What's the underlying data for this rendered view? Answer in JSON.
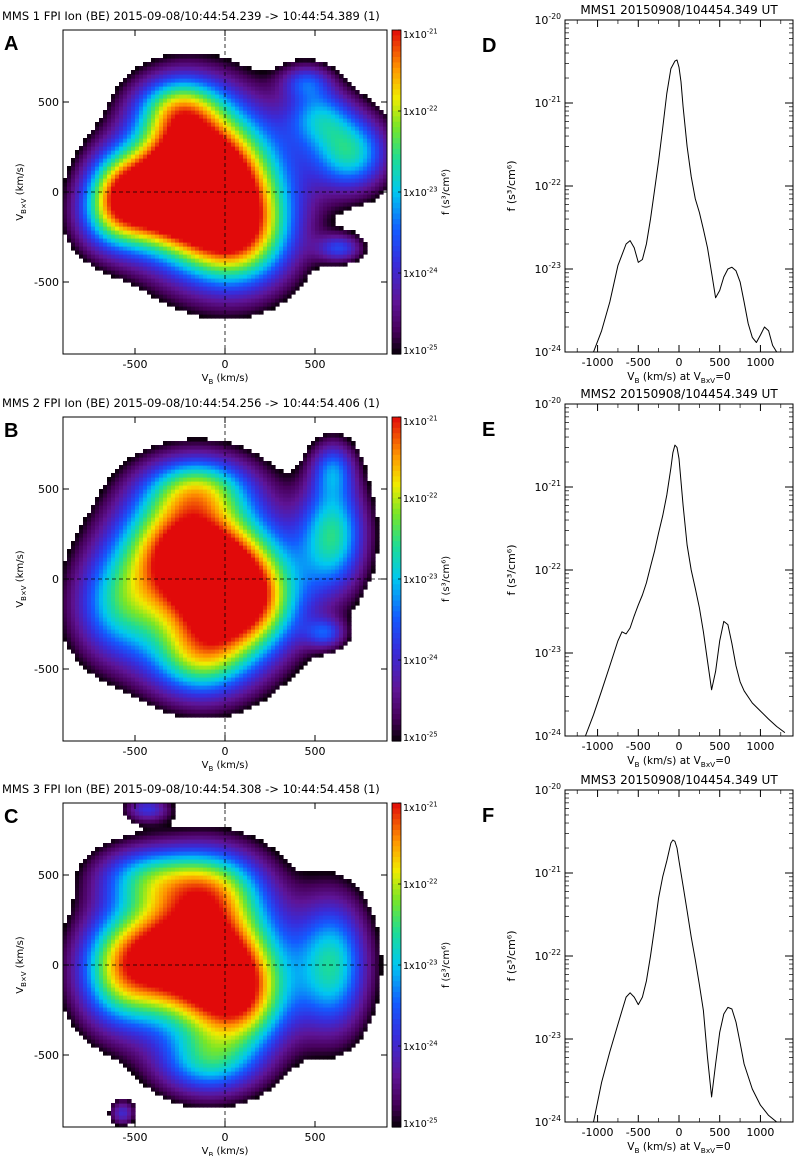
{
  "chart_data": [
    {
      "type": "heatmap",
      "panel_label": "A",
      "title": "MMS 1 FPI Ion (BE) 2015-09-08/10:44:54.239 -> 10:44:54.389 (1)",
      "xlabel": "V",
      "xlabel_sub": "B",
      "xlabel_unit": "(km/s)",
      "ylabel": "V",
      "ylabel_sub": "B×V",
      "ylabel_unit": "(km/s)",
      "xlim": [
        -900,
        900
      ],
      "ylim": [
        -900,
        900
      ],
      "xticks": [
        -500,
        0,
        500
      ],
      "xtick_labels": [
        "-500",
        "0",
        "500"
      ],
      "yticks": [
        -500,
        0,
        500
      ],
      "ytick_labels": [
        "-500",
        "0",
        "500"
      ],
      "colorbar": {
        "label": "f (s³/cm⁶)",
        "range": [
          1e-25,
          1e-21
        ],
        "tick_labels": [
          {
            "value": 1e-21,
            "mant": "1x10",
            "exp": "-21"
          },
          {
            "value": 1e-22,
            "mant": "1x10",
            "exp": "-22"
          },
          {
            "value": 1e-23,
            "mant": "1x10",
            "exp": "-23"
          },
          {
            "value": 1e-24,
            "mant": "1x10",
            "exp": "-24"
          },
          {
            "value": 1e-25,
            "mant": "1x10",
            "exp": "-25"
          }
        ]
      },
      "peak": {
        "x": -50,
        "y": 0,
        "log10f": -21.3
      },
      "blobs": [
        {
          "x": -60,
          "y": 20,
          "sx": 280,
          "sy": 300,
          "amp": 1.0
        },
        {
          "x": -220,
          "y": 130,
          "sx": 220,
          "sy": 270,
          "amp": 0.6
        },
        {
          "x": 80,
          "y": -250,
          "sx": 200,
          "sy": 200,
          "amp": 0.5
        },
        {
          "x": -380,
          "y": -40,
          "sx": 170,
          "sy": 170,
          "amp": 0.42
        },
        {
          "x": -620,
          "y": -130,
          "sx": 150,
          "sy": 150,
          "amp": 0.48
        },
        {
          "x": -600,
          "y": 60,
          "sx": 130,
          "sy": 140,
          "amp": 0.35
        },
        {
          "x": 700,
          "y": 220,
          "sx": 150,
          "sy": 150,
          "amp": 0.55
        },
        {
          "x": 520,
          "y": 430,
          "sx": 130,
          "sy": 120,
          "amp": 0.38
        },
        {
          "x": 450,
          "y": 620,
          "sx": 100,
          "sy": 70,
          "amp": 0.28
        },
        {
          "x": 640,
          "y": -310,
          "sx": 90,
          "sy": 55,
          "amp": 0.32
        },
        {
          "x": -260,
          "y": 480,
          "sx": 160,
          "sy": 120,
          "amp": 0.4
        }
      ]
    },
    {
      "type": "heatmap",
      "panel_label": "B",
      "title": "MMS 2 FPI Ion (BE) 2015-09-08/10:44:54.256 -> 10:44:54.406 (1)",
      "xlabel": "V",
      "xlabel_sub": "B",
      "xlabel_unit": "(km/s)",
      "ylabel": "V",
      "ylabel_sub": "B×V",
      "ylabel_unit": "(km/s)",
      "xlim": [
        -900,
        900
      ],
      "ylim": [
        -900,
        900
      ],
      "xticks": [
        -500,
        0,
        500
      ],
      "xtick_labels": [
        "-500",
        "0",
        "500"
      ],
      "yticks": [
        -500,
        0,
        500
      ],
      "ytick_labels": [
        "-500",
        "0",
        "500"
      ],
      "colorbar": {
        "label": "f (s³/cm⁶)",
        "range": [
          1e-25,
          1e-21
        ],
        "tick_labels": [
          {
            "value": 1e-21,
            "mant": "1x10",
            "exp": "-21"
          },
          {
            "value": 1e-22,
            "mant": "1x10",
            "exp": "-22"
          },
          {
            "value": 1e-23,
            "mant": "1x10",
            "exp": "-23"
          },
          {
            "value": 1e-24,
            "mant": "1x10",
            "exp": "-24"
          },
          {
            "value": 1e-25,
            "mant": "1x10",
            "exp": "-25"
          }
        ]
      },
      "peak": {
        "x": -50,
        "y": -60,
        "log10f": -21.3
      },
      "blobs": [
        {
          "x": -60,
          "y": 0,
          "sx": 260,
          "sy": 300,
          "amp": 1.0
        },
        {
          "x": -300,
          "y": 200,
          "sx": 230,
          "sy": 230,
          "amp": 0.55
        },
        {
          "x": 150,
          "y": -120,
          "sx": 200,
          "sy": 200,
          "amp": 0.5
        },
        {
          "x": -600,
          "y": -150,
          "sx": 180,
          "sy": 220,
          "amp": 0.45
        },
        {
          "x": -150,
          "y": -450,
          "sx": 200,
          "sy": 160,
          "amp": 0.45
        },
        {
          "x": 600,
          "y": 250,
          "sx": 130,
          "sy": 220,
          "amp": 0.58
        },
        {
          "x": 600,
          "y": 620,
          "sx": 85,
          "sy": 110,
          "amp": 0.32
        },
        {
          "x": 560,
          "y": -300,
          "sx": 80,
          "sy": 60,
          "amp": 0.3
        },
        {
          "x": -150,
          "y": 520,
          "sx": 200,
          "sy": 120,
          "amp": 0.42
        }
      ]
    },
    {
      "type": "heatmap",
      "panel_label": "C",
      "title": "MMS 3 FPI Ion (BE) 2015-09-08/10:44:54.308 -> 10:44:54.458 (1)",
      "xlabel": "V",
      "xlabel_sub": "B",
      "xlabel_unit": "(km/s)",
      "ylabel": "V",
      "ylabel_sub": "B×V",
      "ylabel_unit": "(km/s)",
      "xlim": [
        -900,
        900
      ],
      "ylim": [
        -900,
        900
      ],
      "xticks": [
        -500,
        0,
        500
      ],
      "xtick_labels": [
        "-500",
        "0",
        "500"
      ],
      "yticks": [
        -500,
        0,
        500
      ],
      "ytick_labels": [
        "-500",
        "0",
        "500"
      ],
      "colorbar": {
        "label": "f (s³/cm⁶)",
        "range": [
          1e-25,
          1e-21
        ],
        "tick_labels": [
          {
            "value": 1e-21,
            "mant": "1x10",
            "exp": "-21"
          },
          {
            "value": 1e-22,
            "mant": "1x10",
            "exp": "-22"
          },
          {
            "value": 1e-23,
            "mant": "1x10",
            "exp": "-23"
          },
          {
            "value": 1e-24,
            "mant": "1x10",
            "exp": "-24"
          },
          {
            "value": 1e-25,
            "mant": "1x10",
            "exp": "-25"
          }
        ]
      },
      "peak": {
        "x": -70,
        "y": 20,
        "log10f": -21.3
      },
      "blobs": [
        {
          "x": -60,
          "y": 20,
          "sx": 260,
          "sy": 290,
          "amp": 1.0
        },
        {
          "x": -380,
          "y": 80,
          "sx": 220,
          "sy": 230,
          "amp": 0.55
        },
        {
          "x": -600,
          "y": -50,
          "sx": 170,
          "sy": 220,
          "amp": 0.48
        },
        {
          "x": 100,
          "y": -200,
          "sx": 180,
          "sy": 200,
          "amp": 0.45
        },
        {
          "x": -100,
          "y": -550,
          "sx": 200,
          "sy": 130,
          "amp": 0.4
        },
        {
          "x": 600,
          "y": 0,
          "sx": 140,
          "sy": 260,
          "amp": 0.55
        },
        {
          "x": -450,
          "y": 500,
          "sx": 200,
          "sy": 120,
          "amp": 0.38
        },
        {
          "x": -430,
          "y": 870,
          "sx": 90,
          "sy": 50,
          "amp": 0.3
        },
        {
          "x": -570,
          "y": -820,
          "sx": 50,
          "sy": 50,
          "amp": 0.28
        },
        {
          "x": -80,
          "y": 450,
          "sx": 200,
          "sy": 150,
          "amp": 0.45
        }
      ]
    },
    {
      "type": "line",
      "panel_label": "D",
      "title": "MMS1 20150908/104454.349 UT",
      "xlabel": "V",
      "xlabel_sub": "B",
      "xlabel_mid": "(km/s) at V",
      "xlabel_sub2": "BxV",
      "xlabel_end": "=0",
      "ylabel": "f (s³/cm⁶)",
      "xlim": [
        -1400,
        1400
      ],
      "ylim": [
        1e-24,
        1e-20
      ],
      "yscale": "log",
      "xticks": [
        -1000,
        -500,
        0,
        500,
        1000
      ],
      "xtick_labels": [
        "-1000",
        "-500",
        "0",
        "500",
        "1000"
      ],
      "ytick_labels": [
        {
          "value": 1e-20,
          "mant": "10",
          "exp": "-20"
        },
        {
          "value": 1e-21,
          "mant": "10",
          "exp": "-21"
        },
        {
          "value": 1e-22,
          "mant": "10",
          "exp": "-22"
        },
        {
          "value": 1e-23,
          "mant": "10",
          "exp": "-23"
        },
        {
          "value": 1e-24,
          "mant": "10",
          "exp": "-24"
        }
      ],
      "x": [
        -1050,
        -950,
        -850,
        -750,
        -650,
        -600,
        -550,
        -500,
        -450,
        -400,
        -350,
        -300,
        -250,
        -200,
        -150,
        -100,
        -50,
        -25,
        0,
        25,
        50,
        100,
        150,
        200,
        250,
        300,
        350,
        400,
        450,
        500,
        550,
        600,
        650,
        700,
        750,
        800,
        850,
        900,
        950,
        1000,
        1050,
        1100,
        1150,
        1200
      ],
      "y": [
        1e-24,
        1.8e-24,
        4e-24,
        1.1e-23,
        2e-23,
        2.2e-23,
        1.8e-23,
        1.2e-23,
        1.3e-23,
        2e-23,
        4e-23,
        9e-23,
        2e-22,
        5e-22,
        1.3e-21,
        2.6e-21,
        3.2e-21,
        3.3e-21,
        2.7e-21,
        1.8e-21,
        9e-22,
        3e-22,
        1.3e-22,
        7e-23,
        4.8e-23,
        3e-23,
        1.8e-23,
        9e-24,
        4.5e-24,
        5.5e-24,
        8e-24,
        1e-23,
        1.05e-23,
        9.5e-24,
        7e-24,
        4e-24,
        2.2e-24,
        1.5e-24,
        1.3e-24,
        1.6e-24,
        2e-24,
        1.8e-24,
        1.2e-24,
        1e-24
      ]
    },
    {
      "type": "line",
      "panel_label": "E",
      "title": "MMS2 20150908/104454.349 UT",
      "xlabel": "V",
      "xlabel_sub": "B",
      "xlabel_mid": "(km/s) at V",
      "xlabel_sub2": "BxV",
      "xlabel_end": "=0",
      "ylabel": "f (s³/cm⁶)",
      "xlim": [
        -1400,
        1400
      ],
      "ylim": [
        1e-24,
        1e-20
      ],
      "yscale": "log",
      "xticks": [
        -1000,
        -500,
        0,
        500,
        1000
      ],
      "xtick_labels": [
        "-1000",
        "-500",
        "0",
        "500",
        "1000"
      ],
      "ytick_labels": [
        {
          "value": 1e-20,
          "mant": "10",
          "exp": "-20"
        },
        {
          "value": 1e-21,
          "mant": "10",
          "exp": "-21"
        },
        {
          "value": 1e-22,
          "mant": "10",
          "exp": "-22"
        },
        {
          "value": 1e-23,
          "mant": "10",
          "exp": "-23"
        },
        {
          "value": 1e-24,
          "mant": "10",
          "exp": "-24"
        }
      ],
      "x": [
        -1150,
        -1050,
        -950,
        -850,
        -750,
        -700,
        -650,
        -600,
        -550,
        -500,
        -450,
        -400,
        -350,
        -300,
        -250,
        -200,
        -150,
        -100,
        -75,
        -50,
        -25,
        0,
        50,
        100,
        150,
        200,
        250,
        300,
        350,
        400,
        450,
        500,
        550,
        600,
        650,
        700,
        750,
        800,
        900,
        1000,
        1100,
        1200,
        1300
      ],
      "y": [
        1e-24,
        1.8e-24,
        3.5e-24,
        7e-24,
        1.4e-23,
        1.8e-23,
        1.7e-23,
        2e-23,
        2.8e-23,
        3.8e-23,
        5e-23,
        7e-23,
        1.1e-22,
        1.7e-22,
        2.8e-22,
        4.5e-22,
        8e-22,
        1.7e-21,
        2.6e-21,
        3.2e-21,
        3e-21,
        2.2e-21,
        6e-22,
        2e-22,
        1e-22,
        6e-23,
        3.5e-23,
        1.8e-23,
        8e-24,
        3.6e-24,
        6e-24,
        1.4e-23,
        2.4e-23,
        2.2e-23,
        1.3e-23,
        7e-24,
        4.5e-24,
        3.5e-24,
        2.5e-24,
        2e-24,
        1.6e-24,
        1.3e-24,
        1.1e-24
      ]
    },
    {
      "type": "line",
      "panel_label": "F",
      "title": "MMS3 20150908/104454.349 UT",
      "xlabel": "V",
      "xlabel_sub": "B",
      "xlabel_mid": "(km/s) at V",
      "xlabel_sub2": "BxV",
      "xlabel_end": "=0",
      "ylabel": "f (s³/cm⁶)",
      "xlim": [
        -1400,
        1400
      ],
      "ylim": [
        1e-24,
        1e-20
      ],
      "yscale": "log",
      "xticks": [
        -1000,
        -500,
        0,
        500,
        1000
      ],
      "xtick_labels": [
        "-1000",
        "-500",
        "0",
        "500",
        "1000"
      ],
      "ytick_labels": [
        {
          "value": 1e-20,
          "mant": "10",
          "exp": "-20"
        },
        {
          "value": 1e-21,
          "mant": "10",
          "exp": "-21"
        },
        {
          "value": 1e-22,
          "mant": "10",
          "exp": "-22"
        },
        {
          "value": 1e-23,
          "mant": "10",
          "exp": "-23"
        },
        {
          "value": 1e-24,
          "mant": "10",
          "exp": "-24"
        }
      ],
      "x": [
        -1050,
        -950,
        -850,
        -750,
        -700,
        -650,
        -600,
        -550,
        -500,
        -450,
        -400,
        -350,
        -300,
        -250,
        -200,
        -150,
        -100,
        -75,
        -50,
        -25,
        0,
        50,
        100,
        150,
        200,
        250,
        300,
        350,
        400,
        450,
        500,
        550,
        600,
        650,
        700,
        750,
        800,
        900,
        1000,
        1100,
        1200,
        1300
      ],
      "y": [
        1e-24,
        3e-24,
        7e-24,
        1.5e-23,
        2.2e-23,
        3.2e-23,
        3.6e-23,
        3.2e-23,
        2.6e-23,
        3.2e-23,
        5e-23,
        1e-22,
        2.2e-22,
        5e-22,
        9e-22,
        1.4e-21,
        2.3e-21,
        2.5e-21,
        2.4e-21,
        2e-21,
        1.4e-21,
        7e-22,
        3.5e-22,
        1.7e-22,
        9e-23,
        4.5e-23,
        2.2e-23,
        6e-24,
        2e-24,
        5e-24,
        1.2e-23,
        2e-23,
        2.4e-23,
        2.3e-23,
        1.6e-23,
        9e-24,
        5e-24,
        2.5e-24,
        1.6e-24,
        1.2e-24,
        1e-24,
        9e-25
      ]
    }
  ]
}
